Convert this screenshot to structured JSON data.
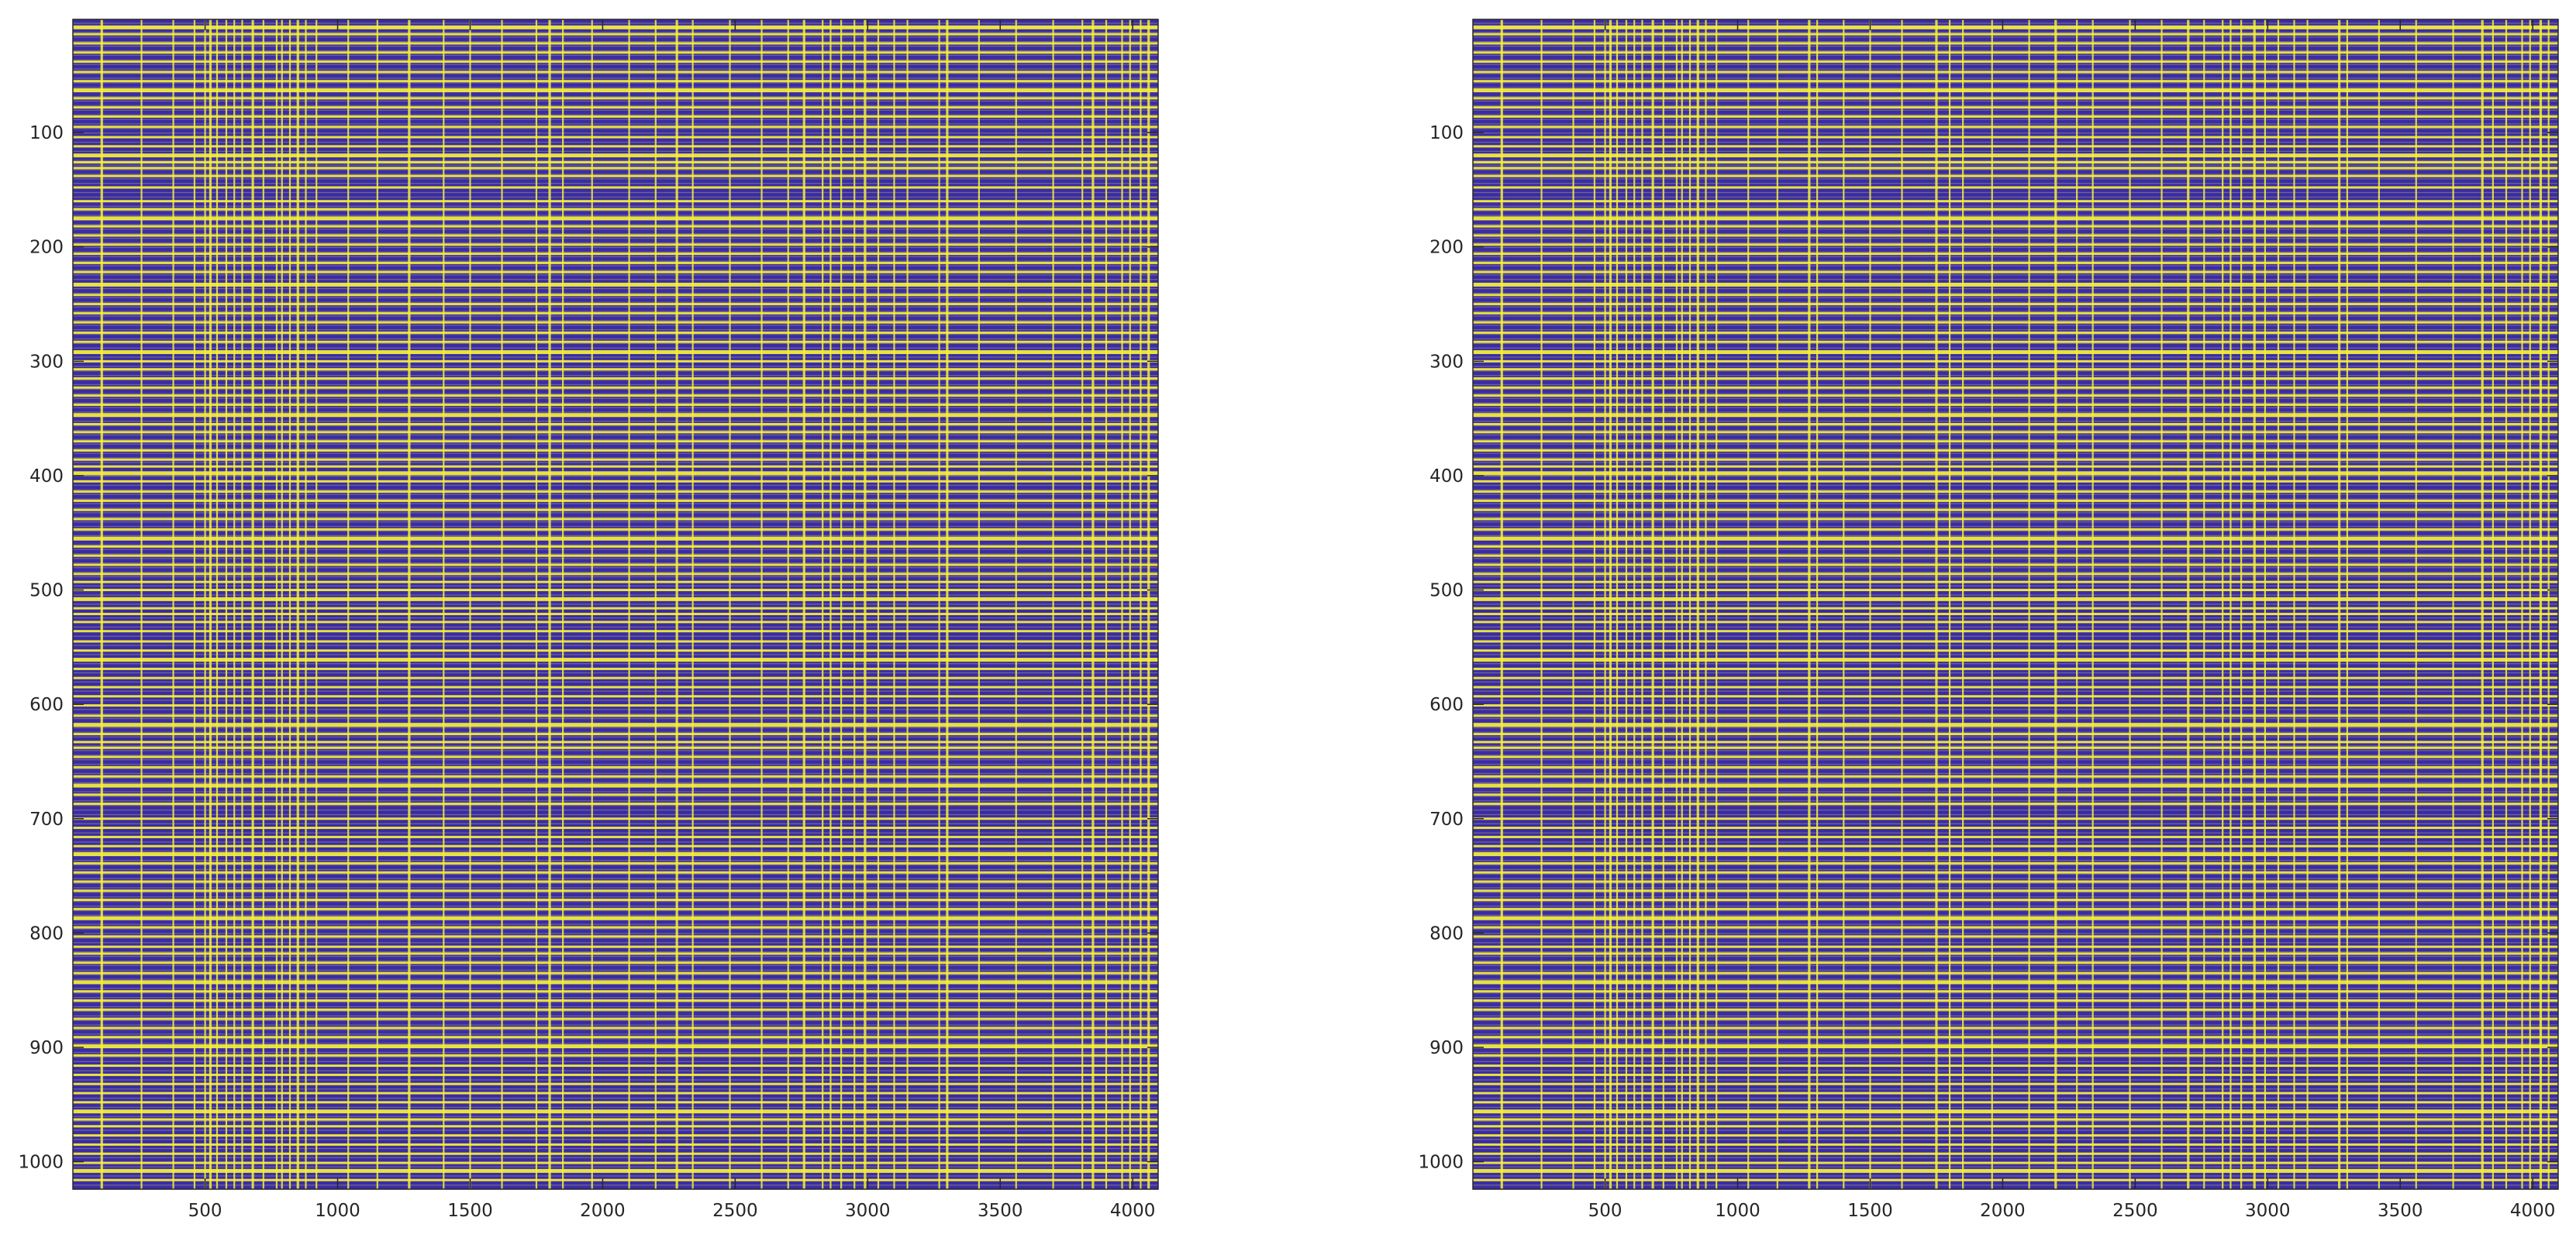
{
  "chart_data": [
    {
      "type": "heatmap",
      "title": "",
      "xlabel": "",
      "ylabel": "",
      "xlim": [
        1,
        4096
      ],
      "ylim": [
        1,
        1024
      ],
      "y_direction": "reversed",
      "grid": false,
      "colorbar": false,
      "colors": {
        "background": "#3b2ca4",
        "stripe": "#f5f03a",
        "mixed": "#9c9478"
      },
      "x_ticks": [
        500,
        1000,
        1500,
        2000,
        2500,
        3000,
        3500,
        4000
      ],
      "x_tick_labels": [
        "500",
        "1000",
        "1500",
        "2000",
        "2500",
        "3000",
        "3500",
        "4000"
      ],
      "y_ticks": [
        100,
        200,
        300,
        400,
        500,
        600,
        700,
        800,
        900,
        1000
      ],
      "y_tick_labels": [
        "100",
        "200",
        "300",
        "400",
        "500",
        "600",
        "700",
        "800",
        "900",
        "1000"
      ],
      "horizontal_stripe_rows": [
        8,
        14,
        22,
        30,
        38,
        47,
        55,
        63,
        70,
        78,
        86,
        95,
        104,
        112,
        120,
        126,
        131,
        138,
        148,
        160,
        167,
        175,
        182,
        190,
        198,
        206,
        214,
        222,
        233,
        242,
        250,
        258,
        266,
        275,
        283,
        292,
        300,
        307,
        315,
        323,
        330,
        338,
        347,
        355,
        362,
        370,
        378,
        386,
        392,
        398,
        405,
        414,
        422,
        430,
        438,
        447,
        455,
        462,
        470,
        478,
        486,
        493,
        500,
        508,
        516,
        521,
        528,
        536,
        545,
        553,
        561,
        569,
        577,
        585,
        593,
        601,
        610,
        618,
        626,
        633,
        638,
        646,
        655,
        663,
        671,
        679,
        687,
        700,
        708,
        716,
        724,
        731,
        739,
        747,
        755,
        763,
        771,
        779,
        787,
        795,
        803,
        812,
        818,
        826,
        835,
        843,
        851,
        859,
        867,
        875,
        883,
        891,
        899,
        907,
        916,
        924,
        932,
        940,
        948,
        956,
        963,
        969,
        977,
        985,
        993,
        1001,
        1008,
        1016
      ],
      "vertical_stripe_cols": [
        110,
        260,
        380,
        460,
        500,
        520,
        545,
        580,
        610,
        640,
        680,
        720,
        770,
        790,
        820,
        850,
        880,
        920,
        1040,
        1150,
        1270,
        1400,
        1500,
        1620,
        1750,
        1800,
        1850,
        1960,
        2100,
        2200,
        2280,
        2340,
        2480,
        2600,
        2700,
        2760,
        2830,
        2860,
        2900,
        2950,
        2990,
        3040,
        3100,
        3150,
        3270,
        3300,
        3420,
        3560,
        3700,
        3810,
        3850,
        3900,
        3960,
        3990,
        4030,
        4060
      ]
    },
    {
      "type": "heatmap",
      "title": "",
      "xlabel": "",
      "ylabel": "",
      "xlim": [
        1,
        4096
      ],
      "ylim": [
        1,
        1024
      ],
      "y_direction": "reversed",
      "grid": false,
      "colorbar": false,
      "colors": {
        "background": "#3b2ca4",
        "stripe": "#f5f03a",
        "mixed": "#9c9478"
      },
      "x_ticks": [
        500,
        1000,
        1500,
        2000,
        2500,
        3000,
        3500,
        4000
      ],
      "x_tick_labels": [
        "500",
        "1000",
        "1500",
        "2000",
        "2500",
        "3000",
        "3500",
        "4000"
      ],
      "y_ticks": [
        100,
        200,
        300,
        400,
        500,
        600,
        700,
        800,
        900,
        1000
      ],
      "y_tick_labels": [
        "100",
        "200",
        "300",
        "400",
        "500",
        "600",
        "700",
        "800",
        "900",
        "1000"
      ],
      "horizontal_stripe_rows": [
        8,
        14,
        22,
        30,
        38,
        47,
        55,
        63,
        70,
        78,
        86,
        95,
        104,
        112,
        120,
        126,
        131,
        138,
        148,
        160,
        167,
        175,
        182,
        190,
        198,
        206,
        214,
        222,
        233,
        242,
        250,
        258,
        266,
        275,
        283,
        292,
        300,
        307,
        315,
        323,
        330,
        338,
        347,
        355,
        362,
        370,
        378,
        386,
        392,
        398,
        405,
        414,
        422,
        430,
        438,
        447,
        455,
        462,
        470,
        478,
        486,
        493,
        500,
        508,
        516,
        521,
        528,
        536,
        545,
        553,
        561,
        569,
        577,
        585,
        593,
        601,
        610,
        618,
        626,
        633,
        638,
        646,
        655,
        663,
        671,
        679,
        687,
        700,
        708,
        716,
        724,
        731,
        739,
        747,
        755,
        763,
        771,
        779,
        787,
        795,
        803,
        812,
        818,
        826,
        835,
        843,
        851,
        859,
        867,
        875,
        883,
        891,
        899,
        907,
        916,
        924,
        932,
        940,
        948,
        956,
        963,
        969,
        977,
        985,
        993,
        1001,
        1008,
        1016
      ],
      "vertical_stripe_cols": [
        110,
        260,
        380,
        460,
        500,
        520,
        545,
        580,
        610,
        640,
        680,
        720,
        770,
        790,
        820,
        850,
        880,
        920,
        1040,
        1150,
        1270,
        1300,
        1400,
        1500,
        1620,
        1750,
        1800,
        1850,
        1960,
        2100,
        2200,
        2280,
        2340,
        2480,
        2600,
        2700,
        2760,
        2830,
        2860,
        2900,
        2950,
        2990,
        3040,
        3100,
        3150,
        3270,
        3300,
        3420,
        3560,
        3700,
        3810,
        3850,
        3900,
        3960,
        3990,
        4030,
        4060
      ]
    }
  ]
}
